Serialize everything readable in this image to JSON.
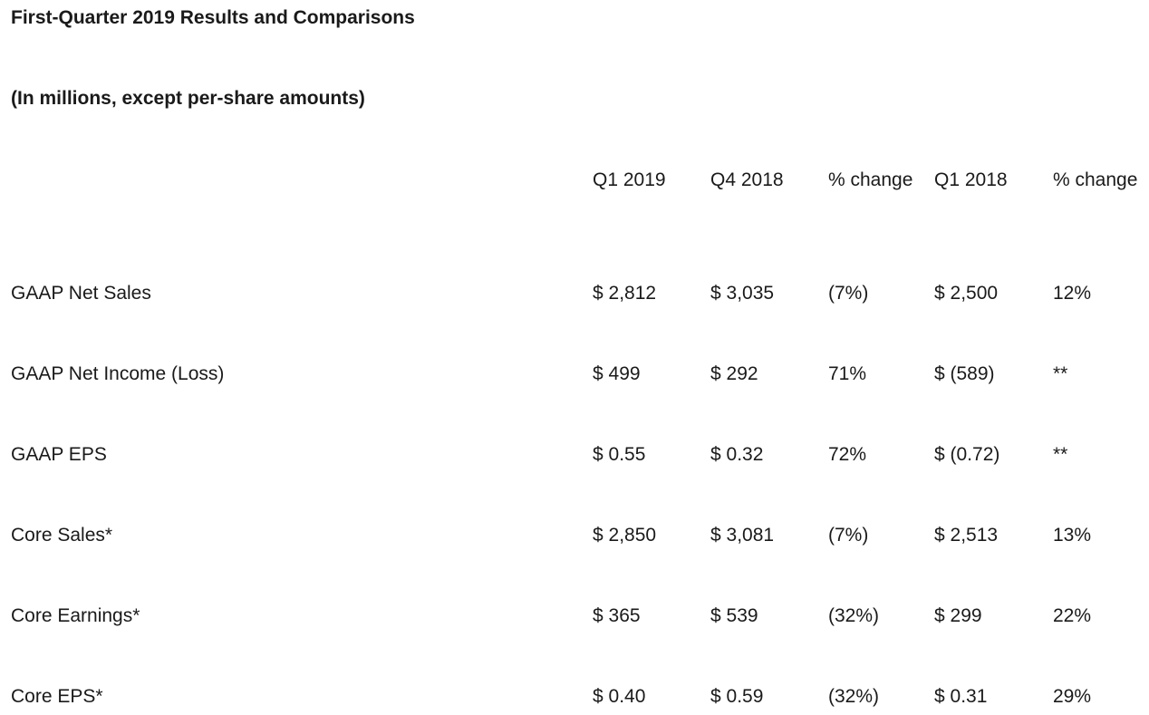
{
  "title": "First-Quarter 2019 Results and Comparisons",
  "subtitle": "(In millions, except per-share amounts)",
  "headers": {
    "q1_2019": "Q1 2019",
    "q4_2018": "Q4 2018",
    "pct_change_1": "% change",
    "q1_2018": "Q1 2018",
    "pct_change_2": "% change"
  },
  "rows": [
    {
      "label": "GAAP Net Sales",
      "q1_2019": "$ 2,812",
      "q4_2018": "$ 3,035",
      "pct_change_1": "(7%)",
      "q1_2018": "$ 2,500",
      "pct_change_2": "12%"
    },
    {
      "label": "GAAP Net Income (Loss)",
      "q1_2019": "$ 499",
      "q4_2018": "$ 292",
      "pct_change_1": "71%",
      "q1_2018": "$ (589)",
      "pct_change_2": "**"
    },
    {
      "label": "GAAP EPS",
      "q1_2019": "$ 0.55",
      "q4_2018": "$ 0.32",
      "pct_change_1": "72%",
      "q1_2018": "$ (0.72)",
      "pct_change_2": "**"
    },
    {
      "label": "Core Sales*",
      "q1_2019": "$ 2,850",
      "q4_2018": "$ 3,081",
      "pct_change_1": "(7%)",
      "q1_2018": "$ 2,513",
      "pct_change_2": "13%"
    },
    {
      "label": "Core Earnings*",
      "q1_2019": "$ 365",
      "q4_2018": "$ 539",
      "pct_change_1": "(32%)",
      "q1_2018": "$ 299",
      "pct_change_2": "22%"
    },
    {
      "label": "Core EPS*",
      "q1_2019": "$ 0.40",
      "q4_2018": "$ 0.59",
      "pct_change_1": "(32%)",
      "q1_2018": "$ 0.31",
      "pct_change_2": "29%"
    }
  ]
}
